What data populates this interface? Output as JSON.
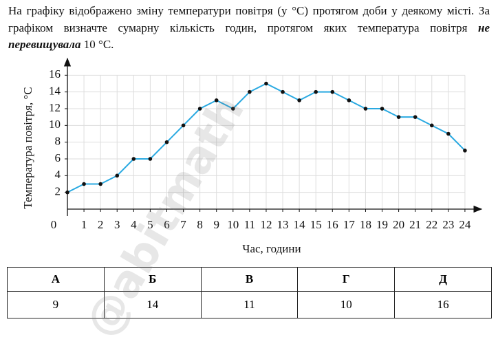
{
  "question": {
    "text_before": "На графіку відображено зміну температури повітря (у °C) протягом доби у деякому місті. За графіком визначте сумарну кількість годин, протягом яких температура повітря ",
    "emphasis": "не перевищувала",
    "text_after": " 10 °C."
  },
  "chart_data": {
    "type": "line",
    "x_label": "Час, години",
    "y_label": "Температура повітря, °C",
    "x": [
      0,
      1,
      2,
      3,
      4,
      5,
      6,
      7,
      8,
      9,
      10,
      11,
      12,
      13,
      14,
      15,
      16,
      17,
      18,
      19,
      20,
      21,
      22,
      23,
      24
    ],
    "values": [
      2,
      3,
      3,
      4,
      6,
      6,
      8,
      10,
      12,
      13,
      12,
      14,
      15,
      14,
      13,
      14,
      14,
      13,
      12,
      12,
      11,
      11,
      10,
      9,
      7
    ],
    "color": "#29a9e1",
    "xlim": [
      0,
      25
    ],
    "ylim": [
      0,
      18
    ],
    "xticks": [
      0,
      1,
      2,
      3,
      4,
      5,
      6,
      7,
      8,
      9,
      10,
      11,
      12,
      13,
      14,
      15,
      16,
      17,
      18,
      19,
      20,
      21,
      22,
      23,
      24
    ],
    "yticks": [
      2,
      4,
      6,
      8,
      10,
      12,
      14,
      16
    ],
    "grid": true
  },
  "table": {
    "header": [
      "А",
      "Б",
      "В",
      "Г",
      "Д"
    ],
    "rows": [
      [
        "9",
        "14",
        "11",
        "10",
        "16"
      ]
    ]
  },
  "watermark": "@abitmath"
}
